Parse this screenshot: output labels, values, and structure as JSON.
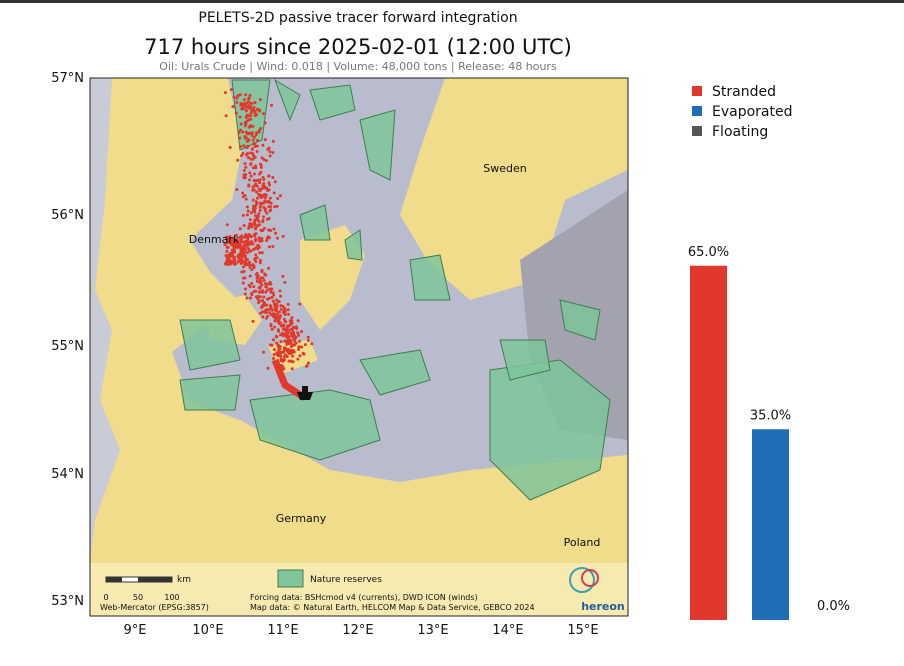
{
  "header": {
    "title": "PELETS-2D passive tracer forward integration",
    "subtitle": "717 hours since 2025-02-01 (12:00 UTC)",
    "info": "Oil: Urals Crude | Wind: 0.018 | Volume: 48,000 tons | Release: 48 hours"
  },
  "map": {
    "lat_ticks": [
      "57°N",
      "56°N",
      "55°N",
      "54°N",
      "53°N"
    ],
    "lon_ticks": [
      "9°E",
      "10°E",
      "11°E",
      "12°E",
      "13°E",
      "14°E",
      "15°E"
    ],
    "places": [
      "Sweden",
      "Denmark",
      "Germany",
      "Poland"
    ],
    "scale_bar": {
      "unit": "km",
      "ticks": [
        "0",
        "50",
        "100"
      ]
    },
    "legend": "Nature reserves",
    "credits": [
      "Forcing data: BSHcmod v4 (currents), DWD ICON (winds)",
      "Map data: © Natural Earth, HELCOM Map & Data Service, GEBCO 2024"
    ],
    "projection": "Web-Mercator (EPSG:3857)",
    "logo": "hereon"
  },
  "chart_data": {
    "type": "bar",
    "categories": [
      "Stranded",
      "Evaporated",
      "Floating"
    ],
    "values": [
      65,
      35,
      0
    ],
    "value_labels": [
      "65.0%",
      "35.0%",
      "0.0%"
    ],
    "colors": [
      "#e0392b",
      "#1f6eb5",
      "#555555"
    ]
  }
}
